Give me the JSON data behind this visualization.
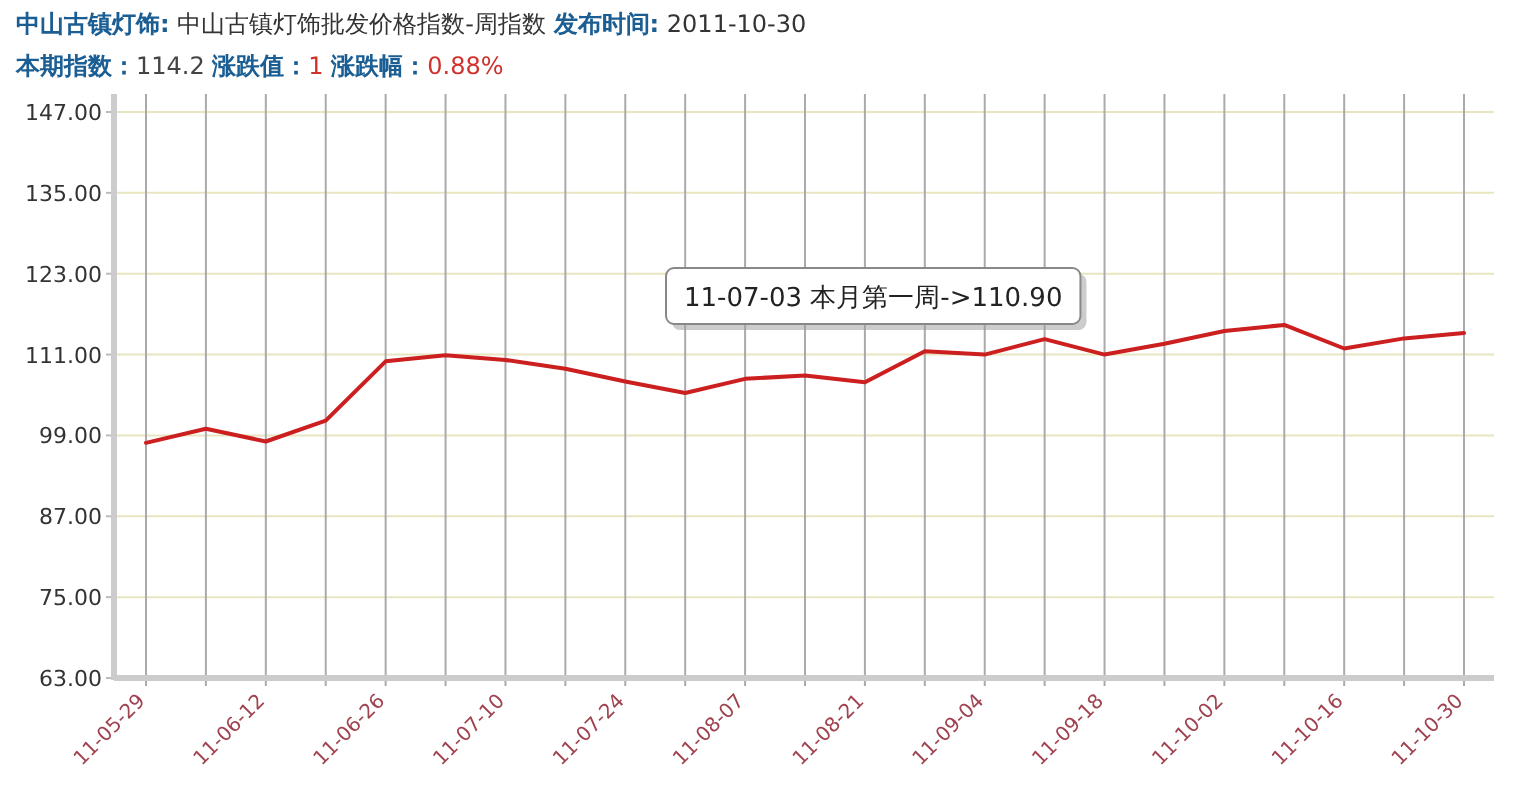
{
  "chart_data": {
    "type": "line",
    "title": "中山古镇灯饰: 中山古镇灯饰批发价格指数-周指数 发布时间: 2011-10-30",
    "subtitle": "本期指数：114.2 涨跌值：1 涨跌幅：0.88%",
    "categories": [
      "11-05-29",
      null,
      "11-06-12",
      null,
      "11-06-26",
      null,
      "11-07-10",
      null,
      "11-07-24",
      null,
      "11-08-07",
      null,
      "11-08-21",
      null,
      "11-09-04",
      null,
      "11-09-18",
      null,
      "11-10-02",
      null,
      "11-10-16",
      null,
      "11-10-30"
    ],
    "series": [
      {
        "color": "#cc1f1f",
        "values": [
          97.9,
          100.0,
          98.1,
          101.2,
          110.0,
          110.9,
          110.2,
          108.9,
          107.0,
          105.3,
          107.4,
          107.9,
          106.9,
          111.5,
          111.0,
          113.3,
          111.0,
          112.6,
          114.5,
          115.4,
          111.9,
          113.4,
          114.2
        ]
      }
    ],
    "ylim": [
      63,
      147
    ],
    "yticks": [
      {
        "value": 63,
        "label": "63.00"
      },
      {
        "value": 75,
        "label": "75.00"
      },
      {
        "value": 87,
        "label": "87.00"
      },
      {
        "value": 99,
        "label": "99.00"
      },
      {
        "value": 111,
        "label": "111.00"
      },
      {
        "value": 123,
        "label": "123.00"
      },
      {
        "value": 135,
        "label": "135.00"
      },
      {
        "value": 147,
        "label": "147.00"
      }
    ],
    "annotations": [
      "11-07-03  本月第一周->110.90"
    ],
    "grid": true,
    "marker": "none",
    "line_style": "solid"
  }
}
